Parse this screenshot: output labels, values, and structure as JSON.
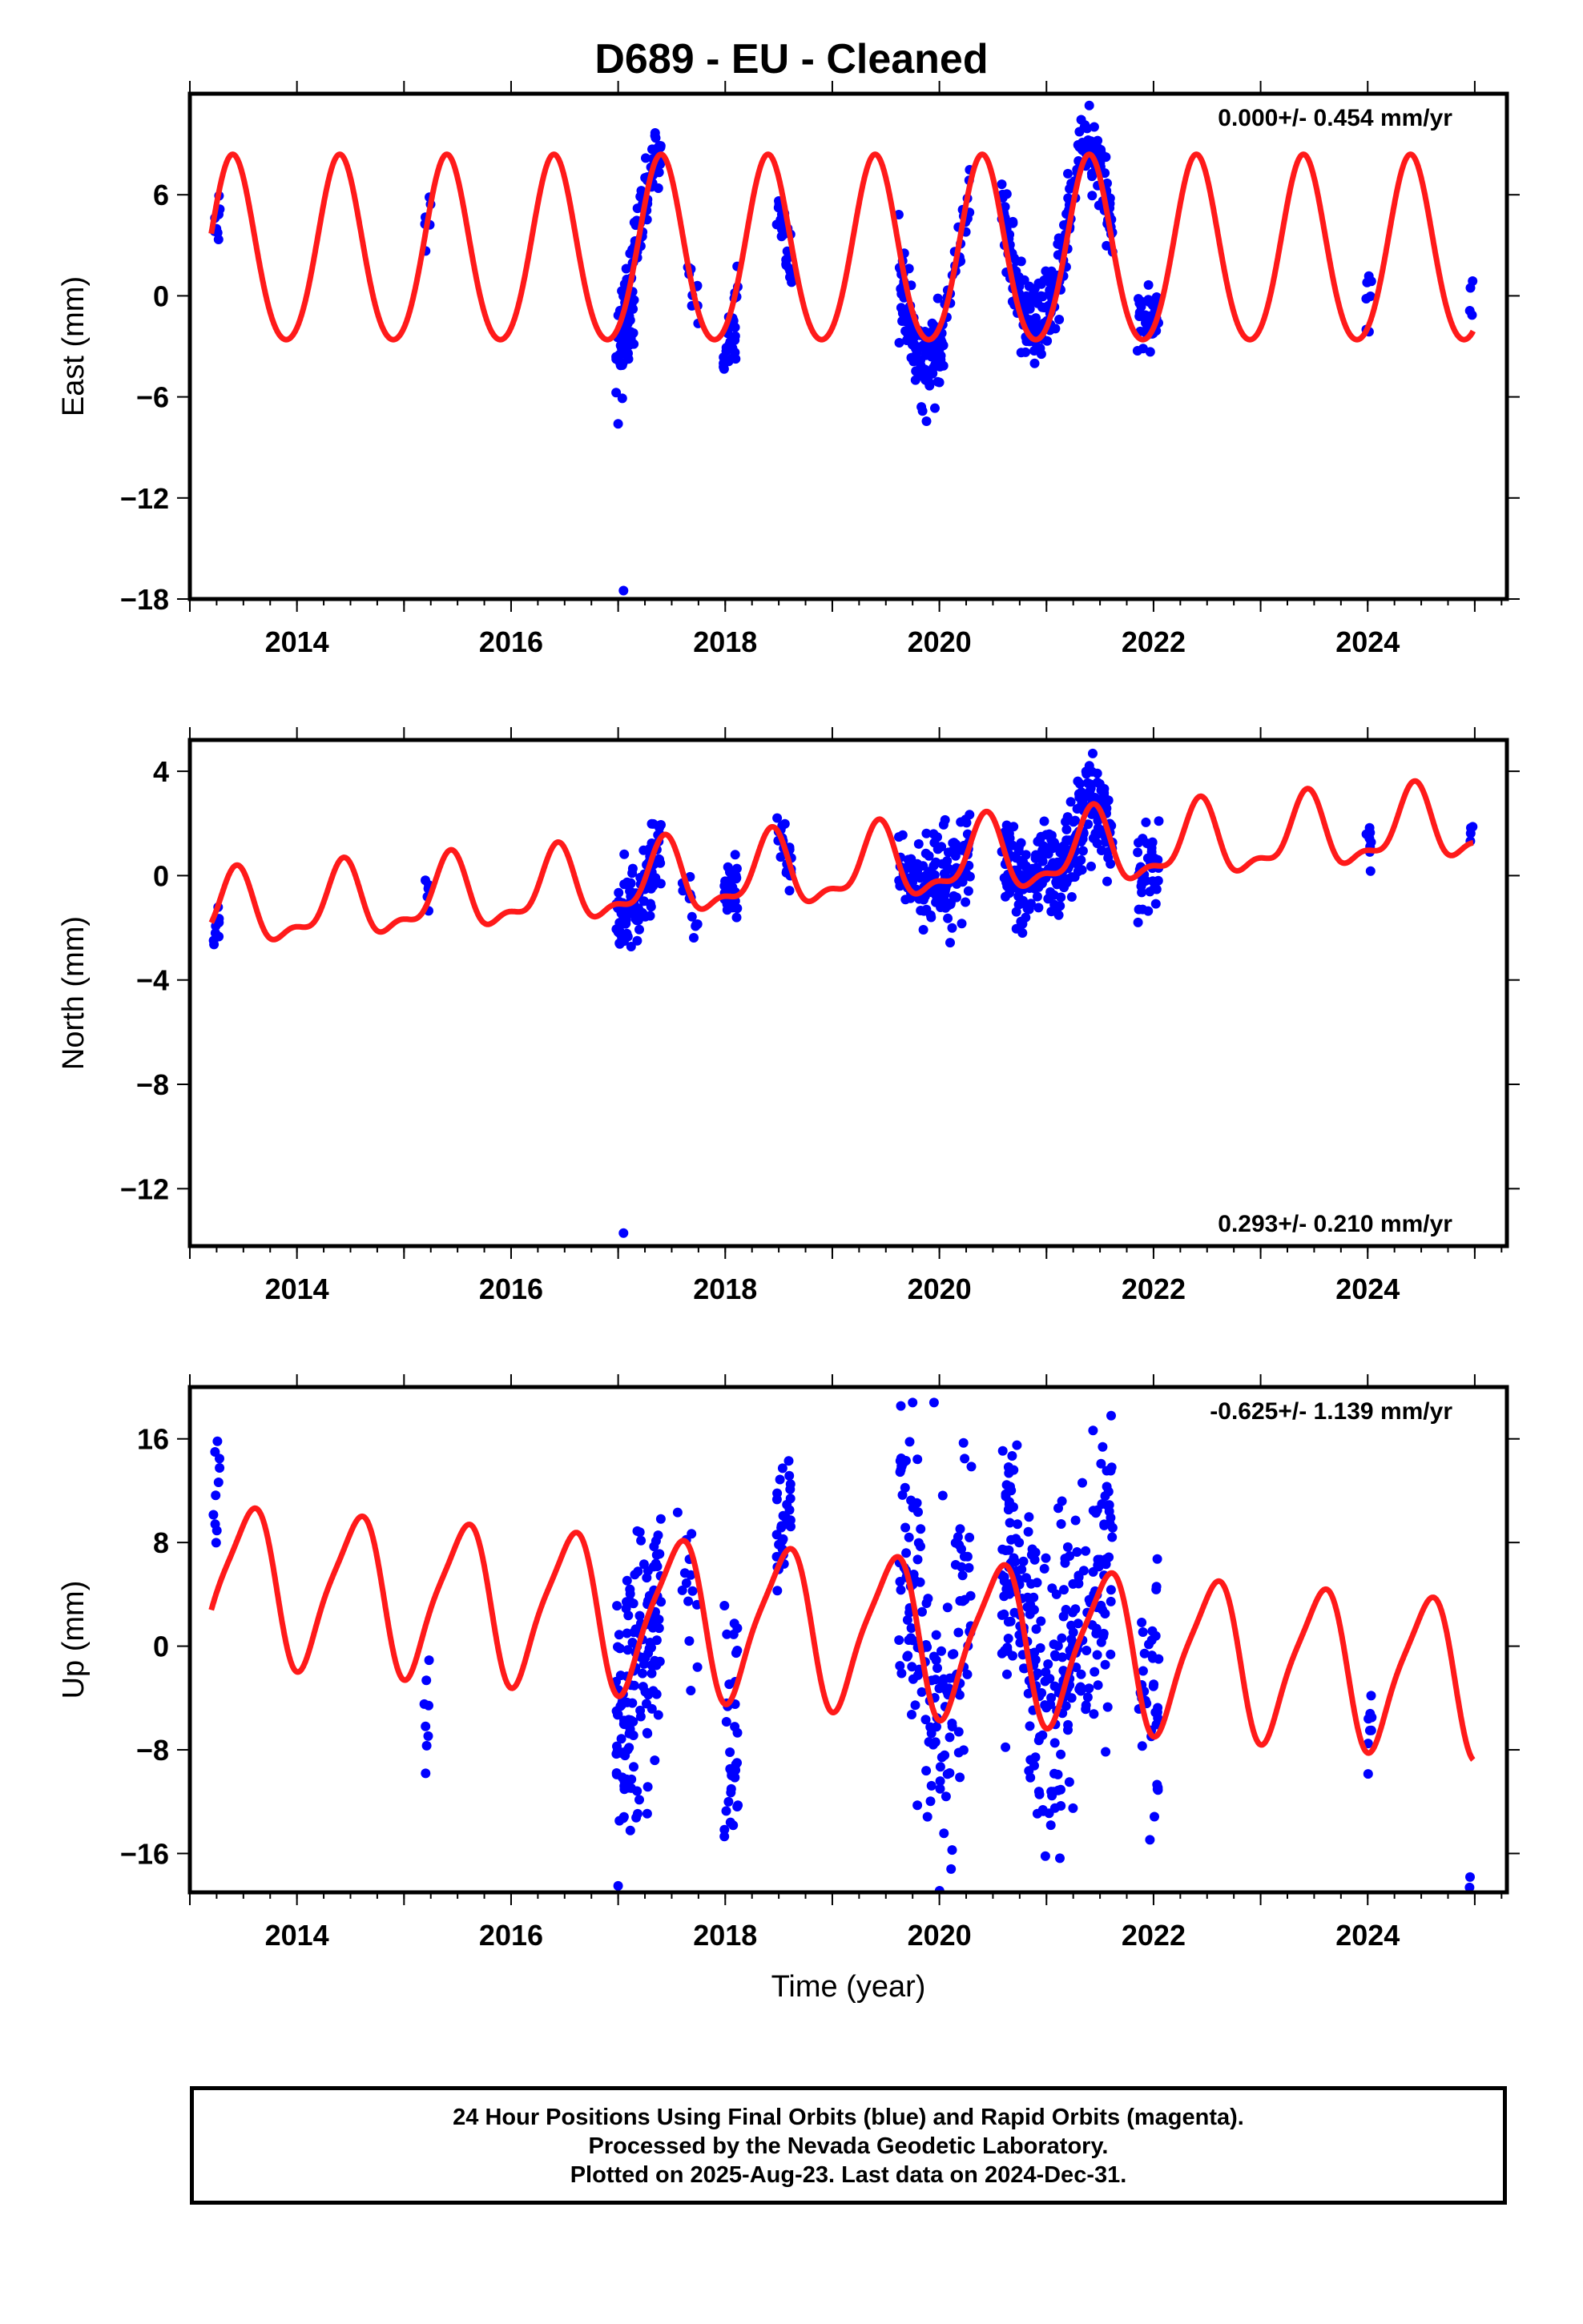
{
  "page": {
    "title": "D689  - EU - Cleaned"
  },
  "colors": {
    "observations": "#0000ff",
    "model": "#ff1a1a",
    "frame": "#000000"
  },
  "chart_data": [
    {
      "type": "scatter",
      "name": "east",
      "ylabel": "East (mm)",
      "xlabel": "",
      "xlim": [
        2013.0,
        2025.3
      ],
      "ylim": [
        -18,
        12
      ],
      "yticks": [
        6,
        0,
        -6,
        -12,
        -18
      ],
      "yticklabels": [
        "6",
        "0",
        "−6",
        "−12",
        "−18"
      ],
      "xticks": [
        2014,
        2016,
        2018,
        2020,
        2022,
        2024
      ],
      "xticklabels": [
        "2014",
        "2016",
        "2018",
        "2020",
        "2022",
        "2024"
      ],
      "rate_text": "0.000+/- 0.454 mm/yr",
      "rate_position": "top-right",
      "model": {
        "offset": 2.4,
        "trend": 0.0,
        "trend_origin": 2013.2,
        "amplitude": 5.5,
        "phase_peak": 2013.4,
        "harmonic2_amplitude": 0.5,
        "harmonic2_peak": 2013.4
      },
      "data_clusters": [
        {
          "t0": 2013.22,
          "t1": 2013.28,
          "n": 8,
          "bias": -0.8,
          "spread": 1.2
        },
        {
          "t0": 2015.18,
          "t1": 2015.25,
          "n": 6,
          "bias": 0.0,
          "spread": 0.8
        },
        {
          "t0": 2016.98,
          "t1": 2017.15,
          "n": 70,
          "bias": -1.0,
          "spread": 1.6
        },
        {
          "t0": 2017.15,
          "t1": 2017.4,
          "n": 60,
          "bias": 0.3,
          "spread": 1.0
        },
        {
          "t0": 2017.65,
          "t1": 2017.75,
          "n": 10,
          "bias": 0.0,
          "spread": 0.8
        },
        {
          "t0": 2017.98,
          "t1": 2018.12,
          "n": 30,
          "bias": -1.2,
          "spread": 1.2
        },
        {
          "t0": 2018.48,
          "t1": 2018.62,
          "n": 25,
          "bias": -2.0,
          "spread": 0.8
        },
        {
          "t0": 2019.62,
          "t1": 2020.05,
          "n": 120,
          "bias": -1.4,
          "spread": 1.2
        },
        {
          "t0": 2020.05,
          "t1": 2020.3,
          "n": 25,
          "bias": -0.5,
          "spread": 1.0
        },
        {
          "t0": 2020.58,
          "t1": 2021.15,
          "n": 160,
          "bias": 0.8,
          "spread": 1.2
        },
        {
          "t0": 2021.15,
          "t1": 2021.62,
          "n": 110,
          "bias": 0.5,
          "spread": 1.0
        },
        {
          "t0": 2021.85,
          "t1": 2022.05,
          "n": 40,
          "bias": 0.8,
          "spread": 0.9
        },
        {
          "t0": 2023.98,
          "t1": 2024.04,
          "n": 8,
          "bias": 1.4,
          "spread": 1.0
        },
        {
          "t0": 2024.95,
          "t1": 2024.99,
          "n": 4,
          "bias": 2.0,
          "spread": 0.7
        }
      ],
      "outliers": [
        {
          "t": 2017.05,
          "y": -17.5
        },
        {
          "t": 2017.0,
          "y": -7.6
        },
        {
          "t": 2021.4,
          "y": 11.3
        }
      ]
    },
    {
      "type": "scatter",
      "name": "north",
      "ylabel": "North (mm)",
      "xlabel": "",
      "xlim": [
        2013.0,
        2025.3
      ],
      "ylim": [
        -14.2,
        5.2
      ],
      "yticks": [
        4,
        0,
        -4,
        -8,
        -12
      ],
      "yticklabels": [
        "4",
        "0",
        "−4",
        "−8",
        "−12"
      ],
      "xticks": [
        2014,
        2016,
        2018,
        2020,
        2022,
        2024
      ],
      "xticklabels": [
        "2014",
        "2016",
        "2018",
        "2020",
        "2022",
        "2024"
      ],
      "rate_text": "0.293+/- 0.210 mm/yr",
      "rate_position": "bottom-right",
      "model": {
        "offset": -1.5,
        "trend": 0.293,
        "trend_origin": 2013.2,
        "amplitude": 1.3,
        "phase_peak": 2013.42,
        "harmonic2_amplitude": 0.55,
        "harmonic2_peak": 2013.45
      },
      "data_clusters": [
        {
          "t0": 2013.22,
          "t1": 2013.28,
          "n": 8,
          "bias": -0.9,
          "spread": 0.5
        },
        {
          "t0": 2015.18,
          "t1": 2015.25,
          "n": 6,
          "bias": 0.3,
          "spread": 0.6
        },
        {
          "t0": 2016.98,
          "t1": 2017.4,
          "n": 120,
          "bias": -0.3,
          "spread": 0.7
        },
        {
          "t0": 2017.55,
          "t1": 2017.75,
          "n": 12,
          "bias": -0.6,
          "spread": 0.5
        },
        {
          "t0": 2017.98,
          "t1": 2018.12,
          "n": 30,
          "bias": 0.4,
          "spread": 0.7
        },
        {
          "t0": 2018.48,
          "t1": 2018.62,
          "n": 25,
          "bias": 0.0,
          "spread": 0.6
        },
        {
          "t0": 2019.62,
          "t1": 2020.3,
          "n": 140,
          "bias": 0.2,
          "spread": 0.9
        },
        {
          "t0": 2020.58,
          "t1": 2021.62,
          "n": 260,
          "bias": 0.0,
          "spread": 0.9
        },
        {
          "t0": 2021.85,
          "t1": 2022.05,
          "n": 40,
          "bias": 0.0,
          "spread": 0.8
        },
        {
          "t0": 2023.98,
          "t1": 2024.04,
          "n": 8,
          "bias": 0.4,
          "spread": 0.5
        },
        {
          "t0": 2024.95,
          "t1": 2024.99,
          "n": 4,
          "bias": 0.3,
          "spread": 0.4
        }
      ],
      "outliers": [
        {
          "t": 2017.05,
          "y": -13.7
        }
      ]
    },
    {
      "type": "scatter",
      "name": "up",
      "ylabel": "Up (mm)",
      "xlabel": "Time (year)",
      "xlim": [
        2013.0,
        2025.3
      ],
      "ylim": [
        -19,
        20
      ],
      "yticks": [
        16,
        8,
        0,
        -8,
        -16
      ],
      "yticklabels": [
        "16",
        "8",
        "0",
        "−8",
        "−16"
      ],
      "xticks": [
        2014,
        2016,
        2018,
        2020,
        2022,
        2024
      ],
      "xticklabels": [
        "2014",
        "2016",
        "2018",
        "2020",
        "2022",
        "2024"
      ],
      "rate_text": "-0.625+/- 1.139 mm/yr",
      "rate_position": "top-right",
      "model": {
        "offset": 5.0,
        "trend": -0.625,
        "trend_origin": 2013.2,
        "amplitude": 5.8,
        "phase_peak": 2013.55,
        "harmonic2_amplitude": 1.2,
        "harmonic2_peak": 2013.7
      },
      "data_clusters": [
        {
          "t0": 2013.22,
          "t1": 2013.28,
          "n": 10,
          "bias": 7.0,
          "spread": 3.0
        },
        {
          "t0": 2015.18,
          "t1": 2015.25,
          "n": 8,
          "bias": -9.0,
          "spread": 3.5
        },
        {
          "t0": 2016.98,
          "t1": 2017.4,
          "n": 150,
          "bias": -2.0,
          "spread": 5.0
        },
        {
          "t0": 2017.55,
          "t1": 2017.75,
          "n": 14,
          "bias": -2.0,
          "spread": 3.0
        },
        {
          "t0": 2017.98,
          "t1": 2018.12,
          "n": 35,
          "bias": -4.0,
          "spread": 5.0
        },
        {
          "t0": 2018.48,
          "t1": 2018.62,
          "n": 30,
          "bias": 2.0,
          "spread": 3.0
        },
        {
          "t0": 2019.62,
          "t1": 2020.3,
          "n": 150,
          "bias": 1.0,
          "spread": 6.0
        },
        {
          "t0": 2020.58,
          "t1": 2021.62,
          "n": 280,
          "bias": 0.5,
          "spread": 6.0
        },
        {
          "t0": 2021.85,
          "t1": 2022.05,
          "n": 40,
          "bias": 1.0,
          "spread": 5.0
        },
        {
          "t0": 2023.98,
          "t1": 2024.04,
          "n": 8,
          "bias": 2.0,
          "spread": 1.8
        },
        {
          "t0": 2024.95,
          "t1": 2024.99,
          "n": 4,
          "bias": -11.0,
          "spread": 1.5
        }
      ],
      "outliers": [
        {
          "t": 2017.0,
          "y": -18.5
        },
        {
          "t": 2019.75,
          "y": 18.8
        },
        {
          "t": 2019.95,
          "y": 18.8
        }
      ]
    }
  ],
  "footer": {
    "line1": "24 Hour Positions Using Final Orbits (blue) and Rapid Orbits (magenta).",
    "line2": "Processed by the Nevada Geodetic Laboratory.",
    "line3": "Plotted on 2025-Aug-23. Last data on 2024-Dec-31."
  }
}
